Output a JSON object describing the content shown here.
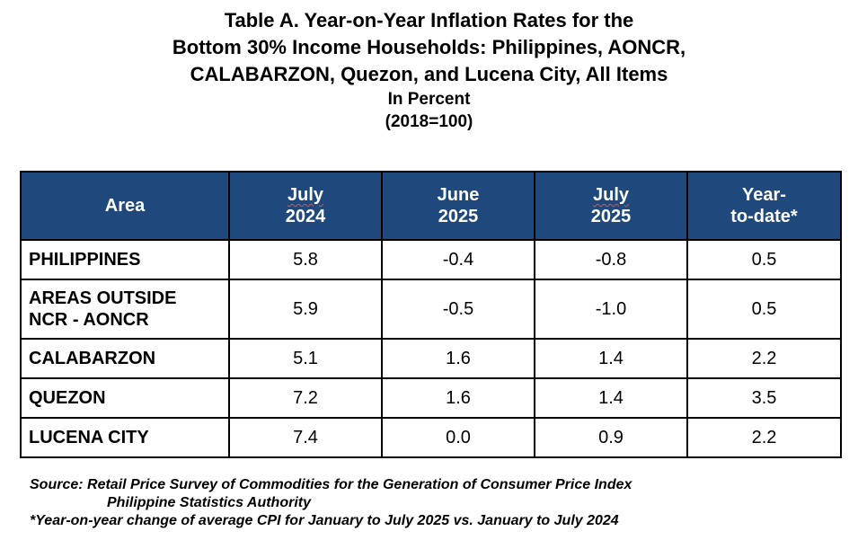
{
  "title": {
    "line1": "Table A. Year-on-Year Inflation Rates for the",
    "line2": "Bottom 30% Income Households: Philippines, AONCR,",
    "line3": "CALABARZON, Quezon, and Lucena City, All Items",
    "unit": "In Percent",
    "base": "(2018=100)"
  },
  "table": {
    "headers": {
      "area": "Area",
      "col1": [
        "July",
        "2024"
      ],
      "col2": [
        "June",
        "2025"
      ],
      "col3": [
        "July",
        "2025"
      ],
      "col4": [
        "Year-",
        "to-date*"
      ]
    },
    "rows": [
      {
        "area": [
          "PHILIPPINES"
        ],
        "values": [
          "5.8",
          "-0.4",
          "-0.8",
          "0.5"
        ]
      },
      {
        "area": [
          "AREAS OUTSIDE",
          "NCR - AONCR"
        ],
        "values": [
          "5.9",
          "-0.5",
          "-1.0",
          "0.5"
        ]
      },
      {
        "area": [
          "CALABARZON"
        ],
        "values": [
          "5.1",
          "1.6",
          "1.4",
          "2.2"
        ]
      },
      {
        "area": [
          "QUEZON"
        ],
        "values": [
          "7.2",
          "1.6",
          "1.4",
          "3.5"
        ]
      },
      {
        "area": [
          "LUCENA CITY"
        ],
        "values": [
          "7.4",
          "0.0",
          "0.9",
          "2.2"
        ]
      }
    ]
  },
  "footnotes": {
    "source_line1": "Source: Retail Price Survey of Commodities for the Generation of Consumer Price Index",
    "source_line2": "Philippine Statistics Authority",
    "note": "*Year-on-year change of average CPI for January to July 2025 vs. January to July 2024"
  },
  "colors": {
    "header_bg": "#1f497d",
    "header_text": "#ffffff",
    "border": "#000000"
  }
}
